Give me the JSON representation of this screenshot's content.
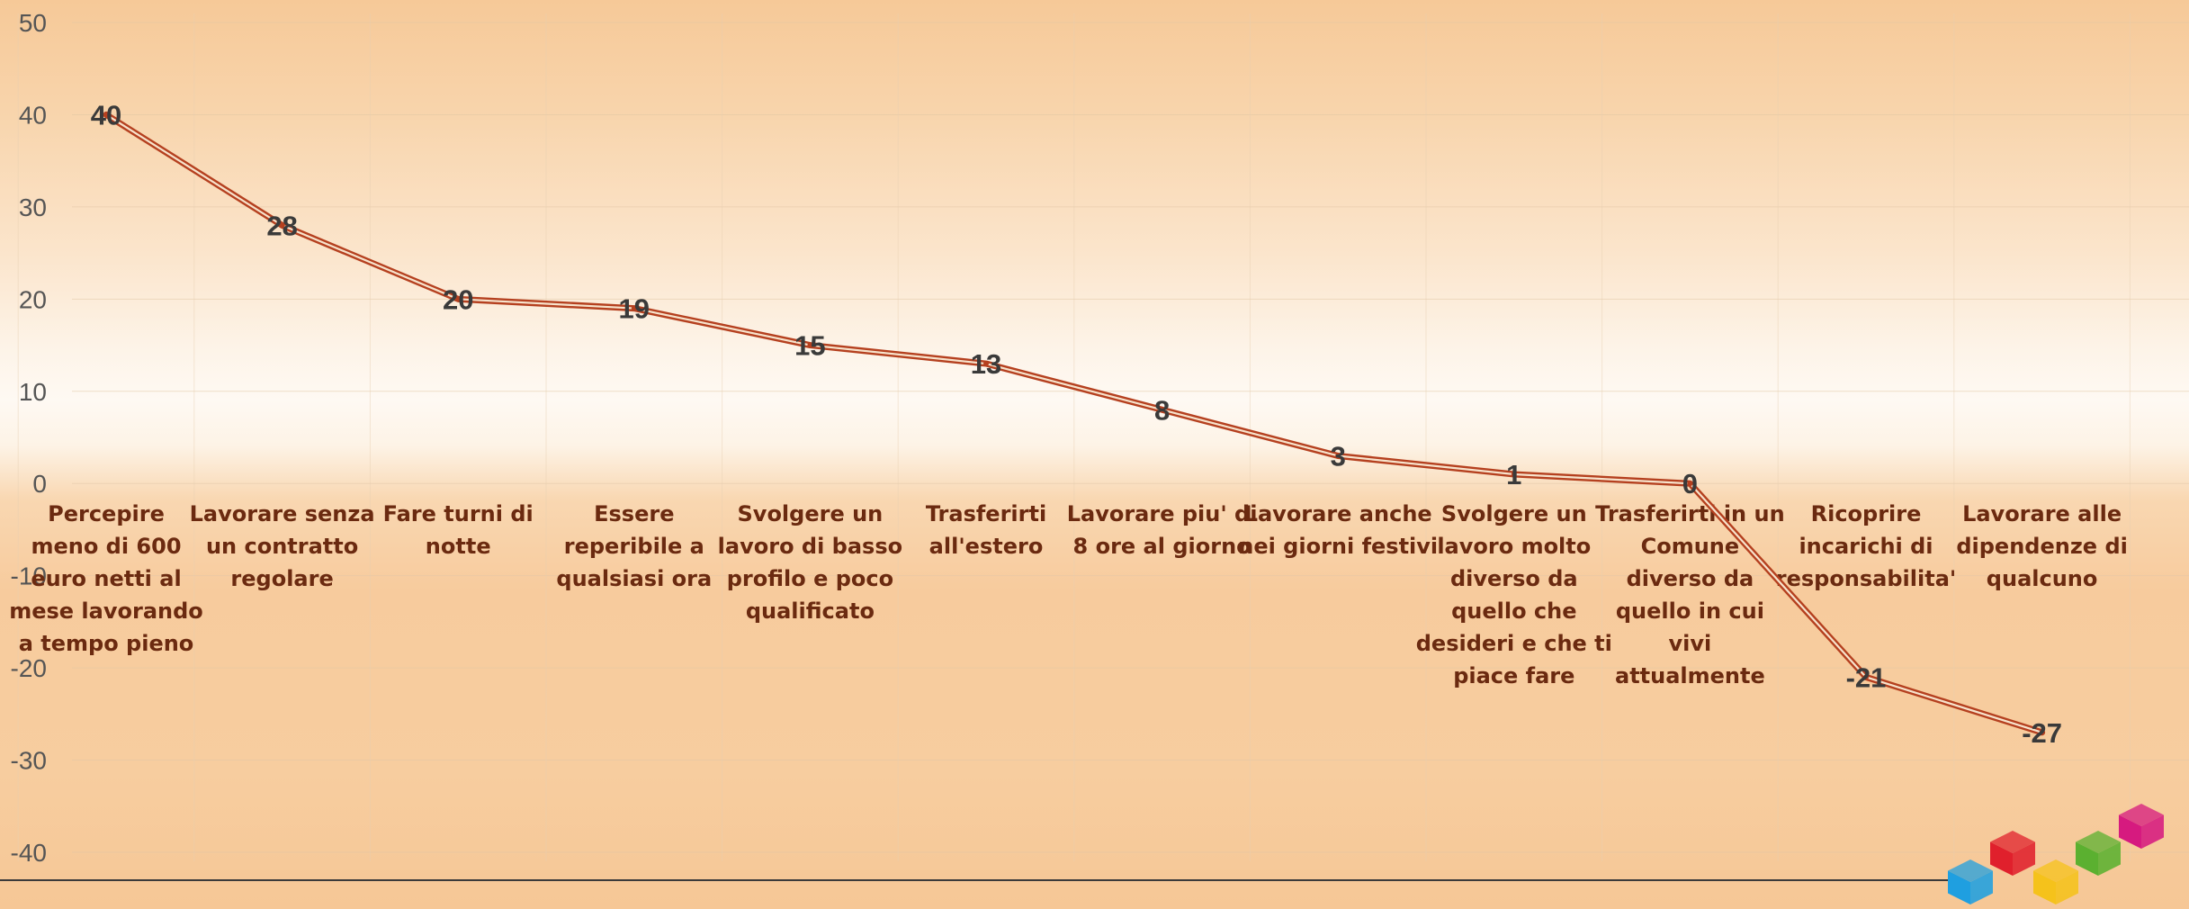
{
  "chart_data": {
    "type": "line",
    "title": "",
    "xlabel": "",
    "ylabel": "",
    "ylim": [
      -40,
      50
    ],
    "y_ticks": [
      50,
      40,
      30,
      20,
      10,
      0,
      -10,
      -20,
      -30,
      -40
    ],
    "grid": true,
    "legend": "none",
    "categories": [
      "Percepire meno di 600 euro netti al mese lavorando a tempo pieno",
      "Lavorare senza un contratto regolare",
      "Fare turni di notte",
      "Essere reperibile a qualsiasi ora",
      "Svolgere un lavoro di basso profilo e poco qualificato",
      "Trasferirti all'estero",
      "Lavorare piu' di 8 ore al giorno",
      "Lavorare anche nei giorni festivi",
      "Svolgere un lavoro molto diverso da quello che desideri e che ti piace fare",
      "Trasferirti in un Comune diverso da quello in cui vivi attualmente",
      "Ricoprire incarichi di responsabilita'",
      "Lavorare alle dipendenze di qualcuno"
    ],
    "category_lines": [
      [
        "Percepire",
        "meno di 600",
        "euro netti al",
        "mese lavorando",
        "a tempo pieno"
      ],
      [
        "Lavorare senza",
        "un contratto",
        "regolare"
      ],
      [
        "Fare turni di",
        "notte"
      ],
      [
        "Essere",
        "reperibile a",
        "qualsiasi ora"
      ],
      [
        "Svolgere un",
        "lavoro di basso",
        "profilo e poco",
        "qualificato"
      ],
      [
        "Trasferirti",
        "all'estero"
      ],
      [
        "Lavorare piu' di",
        "8 ore al giorno"
      ],
      [
        "Lavorare anche",
        "nei giorni festivi"
      ],
      [
        "Svolgere un",
        "lavoro molto",
        "diverso da",
        "quello che",
        "desideri e che ti",
        "piace fare"
      ],
      [
        "Trasferirti in un",
        "Comune",
        "diverso da",
        "quello in cui",
        "vivi",
        "attualmente"
      ],
      [
        "Ricoprire",
        "incarichi di",
        "responsabilita'"
      ],
      [
        "Lavorare alle",
        "dipendenze di",
        "qualcuno"
      ]
    ],
    "series": [
      {
        "values": [
          40,
          28,
          20,
          19,
          15,
          13,
          8,
          3,
          1,
          0,
          -21,
          -27
        ]
      }
    ],
    "data_labels": [
      "40",
      "28",
      "20",
      "19",
      "15",
      "13",
      "8",
      "3",
      "1",
      "0",
      "-21",
      "-27"
    ],
    "colors": {
      "line_outer": "#b5401f",
      "line_inner": "#f7e3cc",
      "cube_blue": "#1f9fe0",
      "cube_red": "#e0202c",
      "cube_yellow": "#f5c21b",
      "cube_green": "#5bb030",
      "cube_magenta": "#d61a7f"
    }
  }
}
